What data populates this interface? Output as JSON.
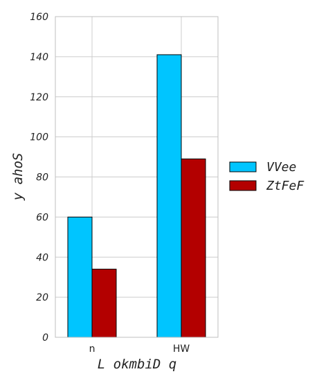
{
  "chart_data": {
    "type": "bar",
    "categories": [
      "n",
      "HW"
    ],
    "series": [
      {
        "name": "VVee",
        "values": [
          60,
          141
        ],
        "color": "#00c5ff"
      },
      {
        "name": "ZtFeF",
        "values": [
          34,
          89
        ],
        "color": "#b30000"
      }
    ],
    "xlabel": "L okmbiD q",
    "ylabel": "y ahoS",
    "ylim": [
      0,
      160
    ],
    "yticks": [
      0,
      20,
      40,
      60,
      80,
      100,
      120,
      140,
      160
    ],
    "grid": true,
    "legend_position": "right"
  }
}
